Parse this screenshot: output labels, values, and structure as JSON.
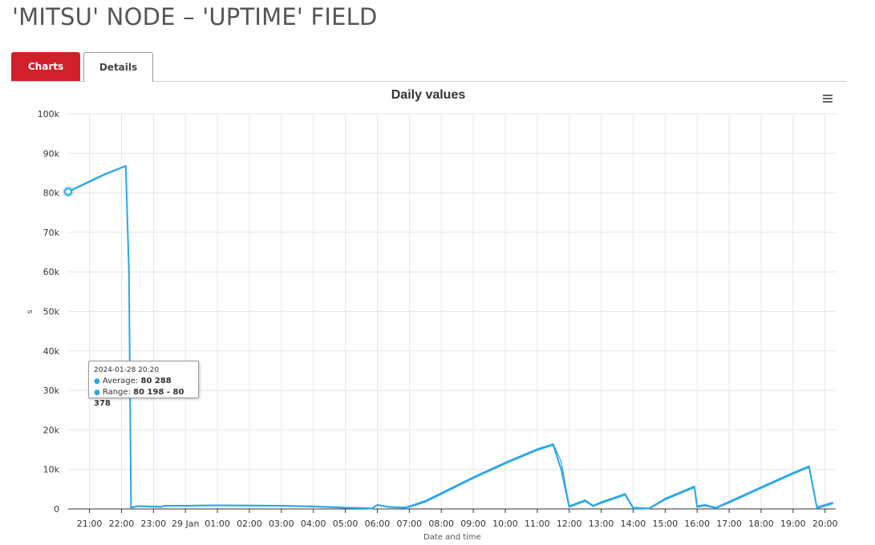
{
  "page": {
    "title": "'MITSU' NODE – 'UPTIME' FIELD"
  },
  "tabs": [
    {
      "label": "Charts",
      "active": true
    },
    {
      "label": "Details",
      "active": false
    }
  ],
  "icons": {
    "menu": "hamburger-menu-icon"
  },
  "colors": {
    "series": "#2aa6ea",
    "accent": "#d0202c"
  },
  "tooltip": {
    "date": "2024-01-28 20:20",
    "average_label": "Average:",
    "average_value": "80 288",
    "range_label": "Range:",
    "range_value": "80 198 - 80 378"
  },
  "chart_data": {
    "type": "area",
    "title": "Daily values",
    "xlabel": "Date and time",
    "ylabel": "s",
    "ylim": [
      0,
      100000
    ],
    "yticks": [
      {
        "value": 0,
        "label": "0"
      },
      {
        "value": 10000,
        "label": "10k"
      },
      {
        "value": 20000,
        "label": "20k"
      },
      {
        "value": 30000,
        "label": "30k"
      },
      {
        "value": 40000,
        "label": "40k"
      },
      {
        "value": 50000,
        "label": "50k"
      },
      {
        "value": 60000,
        "label": "60k"
      },
      {
        "value": 70000,
        "label": "70k"
      },
      {
        "value": 80000,
        "label": "80k"
      },
      {
        "value": 90000,
        "label": "90k"
      },
      {
        "value": 100000,
        "label": "100k"
      }
    ],
    "xlim": [
      "2024-01-28 20:20",
      "2024-01-29 20:20"
    ],
    "xticks": [
      {
        "time": "2024-01-28 21:00",
        "label": "21:00"
      },
      {
        "time": "2024-01-28 22:00",
        "label": "22:00"
      },
      {
        "time": "2024-01-28 23:00",
        "label": "23:00"
      },
      {
        "time": "2024-01-29 00:00",
        "label": "29 Jan"
      },
      {
        "time": "2024-01-29 01:00",
        "label": "01:00"
      },
      {
        "time": "2024-01-29 02:00",
        "label": "02:00"
      },
      {
        "time": "2024-01-29 03:00",
        "label": "03:00"
      },
      {
        "time": "2024-01-29 04:00",
        "label": "04:00"
      },
      {
        "time": "2024-01-29 05:00",
        "label": "05:00"
      },
      {
        "time": "2024-01-29 06:00",
        "label": "06:00"
      },
      {
        "time": "2024-01-29 07:00",
        "label": "07:00"
      },
      {
        "time": "2024-01-29 08:00",
        "label": "08:00"
      },
      {
        "time": "2024-01-29 09:00",
        "label": "09:00"
      },
      {
        "time": "2024-01-29 10:00",
        "label": "10:00"
      },
      {
        "time": "2024-01-29 11:00",
        "label": "11:00"
      },
      {
        "time": "2024-01-29 12:00",
        "label": "12:00"
      },
      {
        "time": "2024-01-29 13:00",
        "label": "13:00"
      },
      {
        "time": "2024-01-29 14:00",
        "label": "14:00"
      },
      {
        "time": "2024-01-29 15:00",
        "label": "15:00"
      },
      {
        "time": "2024-01-29 16:00",
        "label": "16:00"
      },
      {
        "time": "2024-01-29 17:00",
        "label": "17:00"
      },
      {
        "time": "2024-01-29 18:00",
        "label": "18:00"
      },
      {
        "time": "2024-01-29 19:00",
        "label": "19:00"
      },
      {
        "time": "2024-01-29 20:00",
        "label": "20:00"
      }
    ],
    "grid": true,
    "highlight": {
      "time": "2024-01-28 20:20",
      "value": 80288
    },
    "series": [
      {
        "name": "Average",
        "points": [
          [
            "2024-01-28 20:20",
            80288
          ],
          [
            "2024-01-28 21:00",
            82800
          ],
          [
            "2024-01-28 21:30",
            84700
          ],
          [
            "2024-01-28 22:08",
            86800
          ],
          [
            "2024-01-28 22:14",
            60000
          ],
          [
            "2024-01-28 22:18",
            300
          ],
          [
            "2024-01-28 22:30",
            700
          ],
          [
            "2024-01-28 23:15",
            500
          ],
          [
            "2024-01-28 23:20",
            800
          ],
          [
            "2024-01-29 00:00",
            800
          ],
          [
            "2024-01-29 01:00",
            900
          ],
          [
            "2024-01-29 03:00",
            800
          ],
          [
            "2024-01-29 04:00",
            600
          ],
          [
            "2024-01-29 05:00",
            300
          ],
          [
            "2024-01-29 05:30",
            200
          ],
          [
            "2024-01-29 05:50",
            100
          ],
          [
            "2024-01-29 06:00",
            1000
          ],
          [
            "2024-01-29 06:20",
            500
          ],
          [
            "2024-01-29 06:50",
            300
          ],
          [
            "2024-01-29 07:00",
            500
          ],
          [
            "2024-01-29 07:30",
            1800
          ],
          [
            "2024-01-29 08:00",
            3800
          ],
          [
            "2024-01-29 09:00",
            7800
          ],
          [
            "2024-01-29 10:00",
            11500
          ],
          [
            "2024-01-29 11:00",
            14900
          ],
          [
            "2024-01-29 11:30",
            16200
          ],
          [
            "2024-01-29 11:45",
            10000
          ],
          [
            "2024-01-29 12:00",
            500
          ],
          [
            "2024-01-29 12:30",
            2000
          ],
          [
            "2024-01-29 12:45",
            700
          ],
          [
            "2024-01-29 13:00",
            1500
          ],
          [
            "2024-01-29 13:45",
            3600
          ],
          [
            "2024-01-29 14:00",
            200
          ],
          [
            "2024-01-29 14:30",
            100
          ],
          [
            "2024-01-29 15:00",
            2400
          ],
          [
            "2024-01-29 15:55",
            5500
          ],
          [
            "2024-01-29 16:00",
            500
          ],
          [
            "2024-01-29 16:15",
            900
          ],
          [
            "2024-01-29 16:35",
            200
          ],
          [
            "2024-01-29 17:00",
            1600
          ],
          [
            "2024-01-29 18:00",
            5300
          ],
          [
            "2024-01-29 19:00",
            8900
          ],
          [
            "2024-01-29 19:30",
            10600
          ],
          [
            "2024-01-29 19:45",
            200
          ],
          [
            "2024-01-29 20:15",
            1400
          ]
        ]
      },
      {
        "name": "Range",
        "points": [
          [
            "2024-01-28 20:20",
            80378
          ],
          [
            "2024-01-28 21:00",
            83000
          ],
          [
            "2024-01-28 21:30",
            84900
          ],
          [
            "2024-01-28 22:08",
            86900
          ],
          [
            "2024-01-28 22:14",
            60300
          ],
          [
            "2024-01-28 22:18",
            400
          ],
          [
            "2024-01-28 22:30",
            800
          ],
          [
            "2024-01-28 23:15",
            600
          ],
          [
            "2024-01-28 23:20",
            900
          ],
          [
            "2024-01-29 00:00",
            900
          ],
          [
            "2024-01-29 01:00",
            1000
          ],
          [
            "2024-01-29 03:00",
            900
          ],
          [
            "2024-01-29 04:00",
            700
          ],
          [
            "2024-01-29 05:00",
            400
          ],
          [
            "2024-01-29 05:30",
            300
          ],
          [
            "2024-01-29 05:50",
            200
          ],
          [
            "2024-01-29 06:00",
            1100
          ],
          [
            "2024-01-29 06:20",
            600
          ],
          [
            "2024-01-29 06:50",
            400
          ],
          [
            "2024-01-29 07:00",
            700
          ],
          [
            "2024-01-29 07:30",
            2100
          ],
          [
            "2024-01-29 08:00",
            4100
          ],
          [
            "2024-01-29 09:00",
            8100
          ],
          [
            "2024-01-29 10:00",
            11800
          ],
          [
            "2024-01-29 11:00",
            15200
          ],
          [
            "2024-01-29 11:30",
            16500
          ],
          [
            "2024-01-29 11:45",
            12000
          ],
          [
            "2024-01-29 12:00",
            800
          ],
          [
            "2024-01-29 12:30",
            2300
          ],
          [
            "2024-01-29 12:45",
            900
          ],
          [
            "2024-01-29 13:00",
            1800
          ],
          [
            "2024-01-29 13:45",
            3900
          ],
          [
            "2024-01-29 14:00",
            400
          ],
          [
            "2024-01-29 14:30",
            200
          ],
          [
            "2024-01-29 15:00",
            2700
          ],
          [
            "2024-01-29 15:55",
            5800
          ],
          [
            "2024-01-29 16:00",
            800
          ],
          [
            "2024-01-29 16:15",
            1100
          ],
          [
            "2024-01-29 16:35",
            400
          ],
          [
            "2024-01-29 17:00",
            1900
          ],
          [
            "2024-01-29 18:00",
            5600
          ],
          [
            "2024-01-29 19:00",
            9200
          ],
          [
            "2024-01-29 19:30",
            10900
          ],
          [
            "2024-01-29 19:45",
            500
          ],
          [
            "2024-01-29 20:15",
            1700
          ]
        ]
      }
    ]
  }
}
